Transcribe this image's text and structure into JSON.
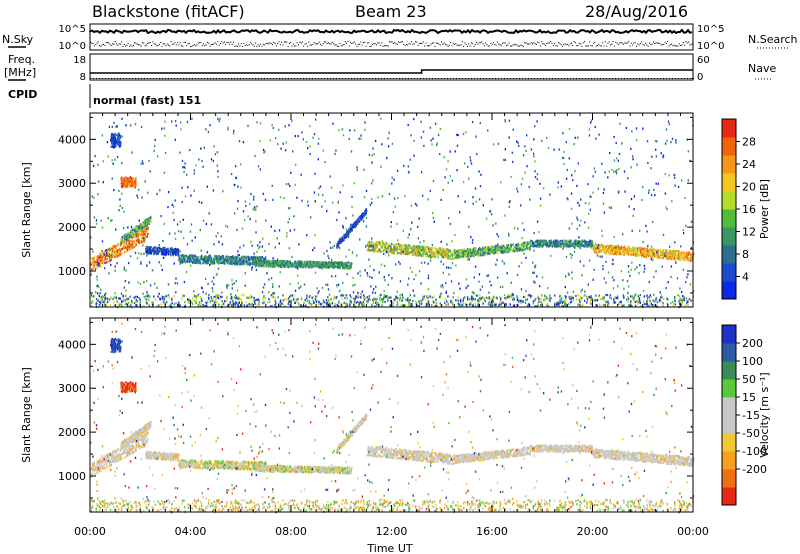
{
  "header": {
    "station": "Blackstone (fitACF)",
    "beam": "Beam 23",
    "date": "28/Aug/2016"
  },
  "top_panels": {
    "nsky_label": "N.Sky",
    "nsky_ticks": [
      "10^5",
      "10^0"
    ],
    "nsearch_label": "N.Search",
    "nsearch_ticks": [
      "10^5",
      "10^0"
    ],
    "freq_label_1": "Freq.",
    "freq_label_2": "[MHz]",
    "freq_ticks": [
      "18",
      "8"
    ],
    "nave_label": "Nave",
    "nave_ticks": [
      "60",
      "0"
    ],
    "cpid_label": "CPID",
    "cpid_text": "normal (fast) 151"
  },
  "colors": {
    "power": [
      "#0a28e6",
      "#1e4ad2",
      "#2d6e8c",
      "#3c9664",
      "#50be3c",
      "#b4dc28",
      "#f0c81e",
      "#f59614",
      "#f0640a",
      "#e62814"
    ],
    "velocity": [
      "#1e32c8",
      "#2d5aa0",
      "#3c8c5a",
      "#5ac83c",
      "#c8c8c8",
      "#c8c8c8",
      "#f0c832",
      "#f5a01e",
      "#f06e14",
      "#e62814"
    ]
  },
  "chart_data": [
    {
      "type": "heatmap",
      "panel": "power",
      "xlabel": "Time UT",
      "ylabel": "Slant Range [km]",
      "x_range_hours": [
        0,
        24
      ],
      "x_ticks": [
        "00:00",
        "04:00",
        "08:00",
        "12:00",
        "16:00",
        "20:00",
        "00:00"
      ],
      "y_range_km": [
        180,
        4600
      ],
      "y_ticks": [
        1000,
        2000,
        3000,
        4000
      ],
      "colorbar_label": "Power [dB]",
      "colorbar_ticks": [
        "4",
        "8",
        "12",
        "16",
        "20",
        "24",
        "28"
      ]
    },
    {
      "type": "heatmap",
      "panel": "velocity",
      "xlabel": "Time UT",
      "ylabel": "Slant Range [km]",
      "x_range_hours": [
        0,
        24
      ],
      "x_ticks": [
        "00:00",
        "04:00",
        "08:00",
        "12:00",
        "16:00",
        "20:00",
        "00:00"
      ],
      "y_range_km": [
        180,
        4600
      ],
      "y_ticks": [
        1000,
        2000,
        3000,
        4000
      ],
      "colorbar_label": "Velocity [m s⁻¹]",
      "colorbar_ticks": [
        "200",
        "100",
        "50",
        "15",
        "-15",
        "-50",
        "-100",
        "-200"
      ]
    }
  ]
}
